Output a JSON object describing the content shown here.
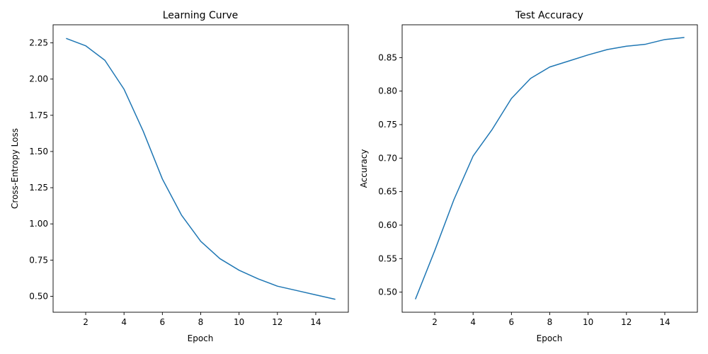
{
  "chart_data": [
    {
      "type": "line",
      "title": "Learning Curve",
      "xlabel": "Epoch",
      "ylabel": "Cross-Entropy Loss",
      "xlim": [
        0.3,
        15.7
      ],
      "ylim": [
        0.39,
        2.375
      ],
      "xticks": [
        2,
        4,
        6,
        8,
        10,
        12,
        14
      ],
      "yticks": [
        0.5,
        0.75,
        1.0,
        1.25,
        1.5,
        1.75,
        2.0,
        2.25
      ],
      "ytick_labels": [
        "0.50",
        "0.75",
        "1.00",
        "1.25",
        "1.50",
        "1.75",
        "2.00",
        "2.25"
      ],
      "grid": false,
      "color": "#1f77b4",
      "x": [
        1,
        2,
        3,
        4,
        5,
        6,
        7,
        8,
        9,
        10,
        11,
        12,
        13,
        14,
        15
      ],
      "y": [
        2.28,
        2.23,
        2.13,
        1.93,
        1.64,
        1.31,
        1.06,
        0.88,
        0.76,
        0.68,
        0.62,
        0.57,
        0.54,
        0.51,
        0.48
      ]
    },
    {
      "type": "line",
      "title": "Test Accuracy",
      "xlabel": "Epoch",
      "ylabel": "Accuracy",
      "xlim": [
        0.3,
        15.7
      ],
      "ylim": [
        0.47,
        0.899
      ],
      "xticks": [
        2,
        4,
        6,
        8,
        10,
        12,
        14
      ],
      "yticks": [
        0.5,
        0.55,
        0.6,
        0.65,
        0.7,
        0.75,
        0.8,
        0.85
      ],
      "ytick_labels": [
        "0.50",
        "0.55",
        "0.60",
        "0.65",
        "0.70",
        "0.75",
        "0.80",
        "0.85"
      ],
      "grid": false,
      "color": "#1f77b4",
      "x": [
        1,
        2,
        3,
        4,
        5,
        6,
        7,
        8,
        9,
        10,
        11,
        12,
        13,
        14,
        15
      ],
      "y": [
        0.49,
        0.562,
        0.638,
        0.703,
        0.743,
        0.789,
        0.819,
        0.836,
        0.845,
        0.854,
        0.862,
        0.867,
        0.87,
        0.877,
        0.88
      ]
    }
  ]
}
